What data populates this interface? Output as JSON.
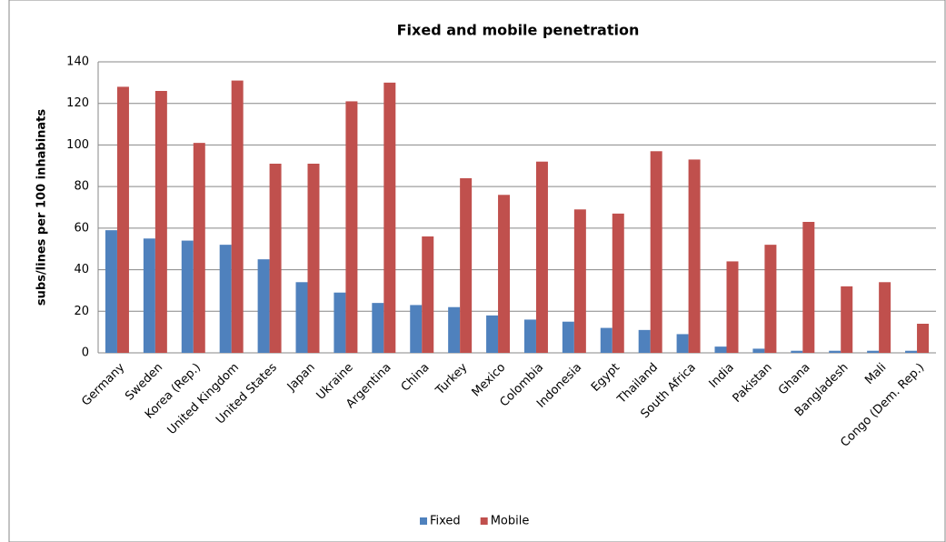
{
  "chart_data": {
    "type": "bar",
    "title": "Fixed and mobile penetration",
    "y_label": "subs/lines per 100 inhabinats",
    "categories": [
      "Germany",
      "Sweden",
      "Korea (Rep.)",
      "United Kingdom",
      "United States",
      "Japan",
      "Ukraine",
      "Argentina",
      "China",
      "Turkey",
      "Mexico",
      "Colombia",
      "Indonesia",
      "Egypt",
      "Thailand",
      "South Africa",
      "India",
      "Pakistan",
      "Ghana",
      "Bangladesh",
      "Mali",
      "Congo (Dem. Rep.)"
    ],
    "series": [
      {
        "name": "Fixed",
        "color": "#4f81bd",
        "values": [
          59,
          55,
          54,
          52,
          45,
          34,
          29,
          24,
          23,
          22,
          18,
          16,
          15,
          12,
          11,
          9,
          3,
          2,
          1,
          1,
          1,
          1
        ]
      },
      {
        "name": "Mobile",
        "color": "#c0504d",
        "values": [
          128,
          126,
          101,
          131,
          91,
          91,
          121,
          130,
          56,
          84,
          76,
          92,
          69,
          67,
          97,
          93,
          44,
          52,
          63,
          32,
          34,
          14
        ]
      }
    ],
    "ylim": [
      0,
      140
    ],
    "yticks": [
      0,
      20,
      40,
      60,
      80,
      100,
      120,
      140
    ],
    "grid": true,
    "legend": "bottom"
  }
}
